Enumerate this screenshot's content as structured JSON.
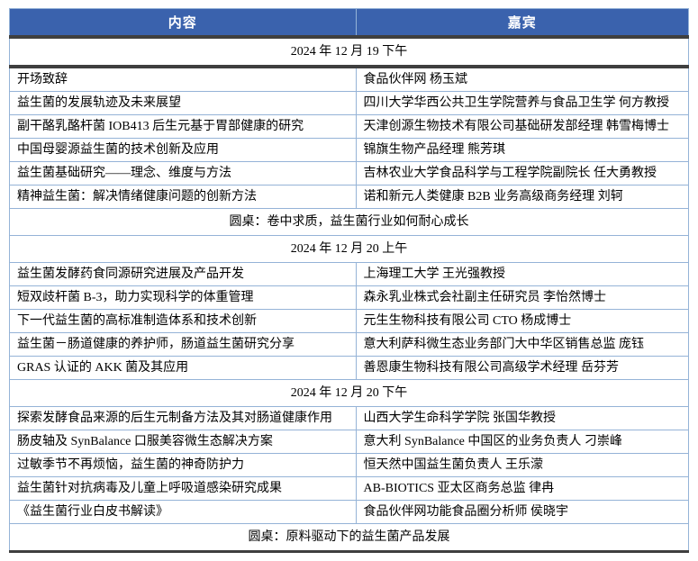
{
  "table": {
    "accent_color": "#3a62ad",
    "light_border_color": "#95b3d7",
    "heavy_rule_color": "#3f3f3f",
    "header_text_color": "#ffffff",
    "body_text_color": "#000000",
    "header": {
      "content_label": "内容",
      "guest_label": "嘉宾"
    },
    "sections": [
      {
        "date": "2024 年 12 月 19 下午",
        "rows": [
          {
            "content": "开场致辞",
            "guest": "食品伙伴网 杨玉斌"
          },
          {
            "content": "益生菌的发展轨迹及未来展望",
            "guest": "四川大学华西公共卫生学院营养与食品卫生学 何方教授"
          },
          {
            "content": "副干酪乳酪杆菌 IOB413 后生元基于胃部健康的研究",
            "guest": "天津创源生物技术有限公司基础研发部经理 韩雪梅博士"
          },
          {
            "content": "中国母婴源益生菌的技术创新及应用",
            "guest": "锦旗生物产品经理 熊芳琪"
          },
          {
            "content": "益生菌基础研究——理念、维度与方法",
            "guest": "吉林农业大学食品科学与工程学院副院长 任大勇教授"
          },
          {
            "content": "精神益生菌：解决情绪健康问题的创新方法",
            "guest": "诺和新元人类健康 B2B 业务高级商务经理 刘轲"
          }
        ],
        "roundtable": "圆桌：卷中求质，益生菌行业如何耐心成长"
      },
      {
        "date": "2024 年 12 月 20 上午",
        "rows": [
          {
            "content": "益生菌发酵药食同源研究进展及产品开发",
            "guest": "上海理工大学 王光强教授"
          },
          {
            "content": "短双歧杆菌 B-3，助力实现科学的体重管理",
            "guest": "森永乳业株式会社副主任研究员 李怡然博士"
          },
          {
            "content": "下一代益生菌的高标准制造体系和技术创新",
            "guest": "元生生物科技有限公司 CTO 杨成博士"
          },
          {
            "content": "益生菌－肠道健康的养护师，肠道益生菌研究分享",
            "guest": "意大利萨科微生态业务部门大中华区销售总监 庞钰"
          },
          {
            "content": "GRAS 认证的 AKK 菌及其应用",
            "guest": "善恩康生物科技有限公司高级学术经理 岳芬芳"
          }
        ],
        "roundtable": null
      },
      {
        "date": "2024 年 12 月 20 下午",
        "rows": [
          {
            "content": "探索发酵食品来源的后生元制备方法及其对肠道健康作用",
            "guest": "山西大学生命科学学院 张国华教授"
          },
          {
            "content": "肠皮轴及 SynBalance 口服美容微生态解决方案",
            "guest": "意大利 SynBalance 中国区的业务负责人 刁崇峰"
          },
          {
            "content": "过敏季节不再烦恼，益生菌的神奇防护力",
            "guest": "恒天然中国益生菌负责人 王乐濛"
          },
          {
            "content": "益生菌针对抗病毒及儿童上呼吸道感染研究成果",
            "guest": "AB-BIOTICS 亚太区商务总监 律冉"
          },
          {
            "content": "《益生菌行业白皮书解读》",
            "guest": "食品伙伴网功能食品圈分析师 侯晓宇"
          }
        ],
        "roundtable": "圆桌：原料驱动下的益生菌产品发展"
      }
    ]
  }
}
